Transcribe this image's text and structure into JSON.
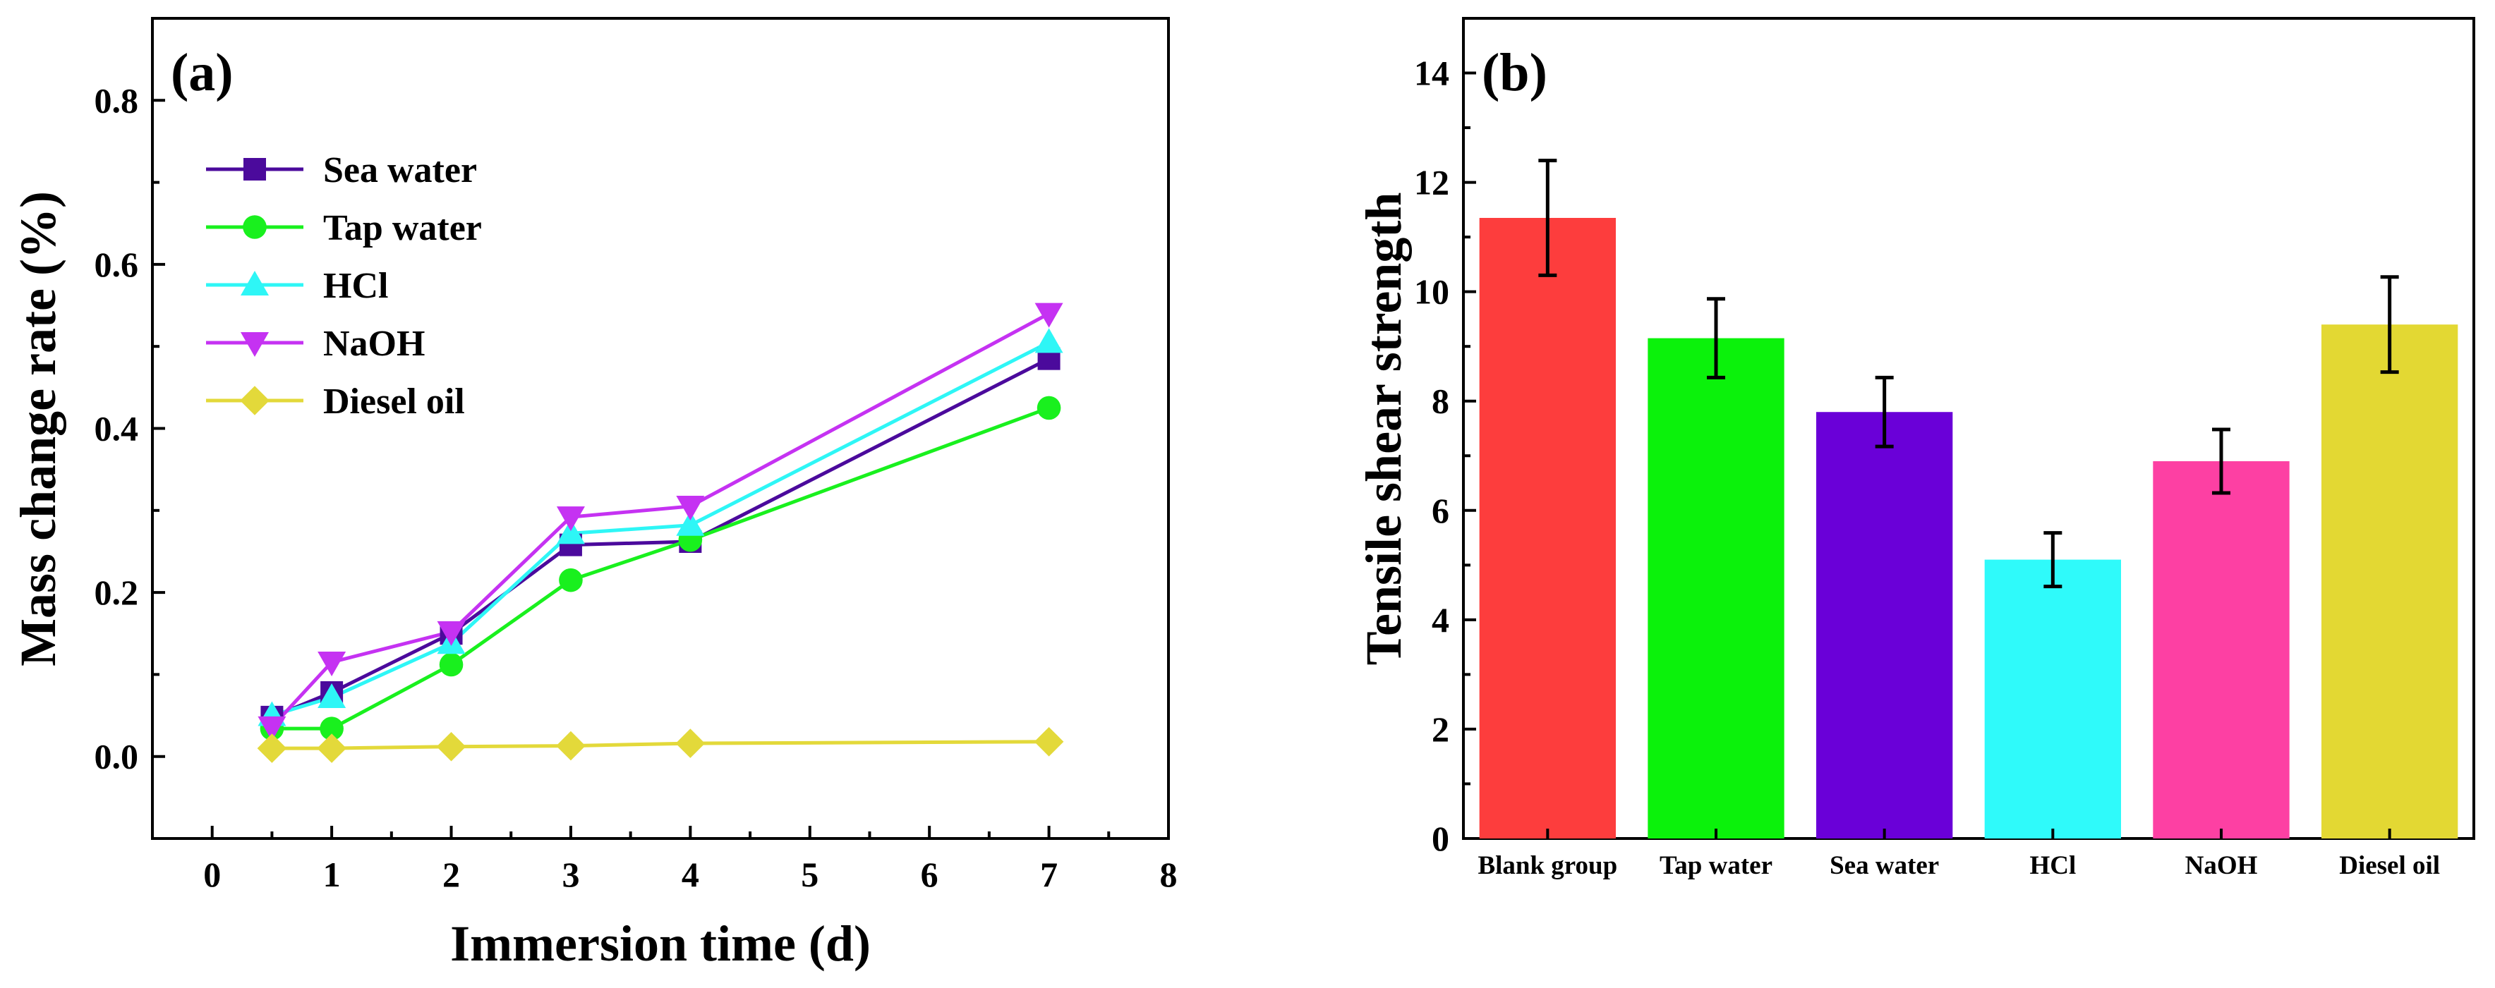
{
  "chart_data": [
    {
      "type": "line",
      "panel_label": "(a)",
      "xlabel": "Immersion time (d)",
      "ylabel": "Mass change rate (%)",
      "xlim": [
        -0.5,
        8
      ],
      "ylim": [
        -0.1,
        0.9
      ],
      "x_ticks": [
        "0",
        "1",
        "2",
        "3",
        "4",
        "5",
        "6",
        "7",
        "8"
      ],
      "y_ticks": [
        "0.0",
        "0.2",
        "0.4",
        "0.6",
        "0.8"
      ],
      "legend_position": "upper-left",
      "series": [
        {
          "name": "Sea water",
          "color": "#4B0A9C",
          "marker": "square",
          "x": [
            0.5,
            1,
            2,
            3,
            4,
            7
          ],
          "y": [
            0.048,
            0.078,
            0.15,
            0.258,
            0.262,
            0.485
          ]
        },
        {
          "name": "Tap water",
          "color": "#19F01E",
          "marker": "circle",
          "x": [
            0.5,
            1,
            2,
            3,
            4,
            7
          ],
          "y": [
            0.034,
            0.034,
            0.112,
            0.215,
            0.264,
            0.425
          ]
        },
        {
          "name": "HCl",
          "color": "#2EF6F6",
          "marker": "triangle-up",
          "x": [
            0.5,
            1,
            2,
            3,
            4,
            7
          ],
          "y": [
            0.05,
            0.072,
            0.138,
            0.272,
            0.282,
            0.505
          ]
        },
        {
          "name": "NaOH",
          "color": "#C532F2",
          "marker": "triangle-down",
          "x": [
            0.5,
            1,
            2,
            3,
            4,
            7
          ],
          "y": [
            0.036,
            0.115,
            0.152,
            0.292,
            0.305,
            0.54
          ]
        },
        {
          "name": "Diesel oil",
          "color": "#E3D93A",
          "marker": "diamond",
          "x": [
            0.5,
            1,
            2,
            3,
            4,
            7
          ],
          "y": [
            0.01,
            0.01,
            0.012,
            0.013,
            0.016,
            0.018
          ]
        }
      ]
    },
    {
      "type": "bar",
      "panel_label": "(b)",
      "xlabel": "",
      "ylabel": "Tensile shear strength",
      "ylim": [
        0,
        15
      ],
      "y_ticks": [
        "0",
        "2",
        "4",
        "6",
        "8",
        "10",
        "12",
        "14"
      ],
      "categories": [
        "Blank group",
        "Tap water",
        "Sea water",
        "HCl",
        "NaOH",
        "Diesel oil"
      ],
      "values": [
        11.35,
        9.15,
        7.8,
        5.1,
        6.9,
        9.4
      ],
      "errors": [
        1.05,
        0.72,
        0.63,
        0.49,
        0.58,
        0.87
      ],
      "colors": [
        "#FD3D3D",
        "#0BF20B",
        "#6A00D8",
        "#2FFAFA",
        "#FD40A3",
        "#E3D833"
      ]
    }
  ]
}
